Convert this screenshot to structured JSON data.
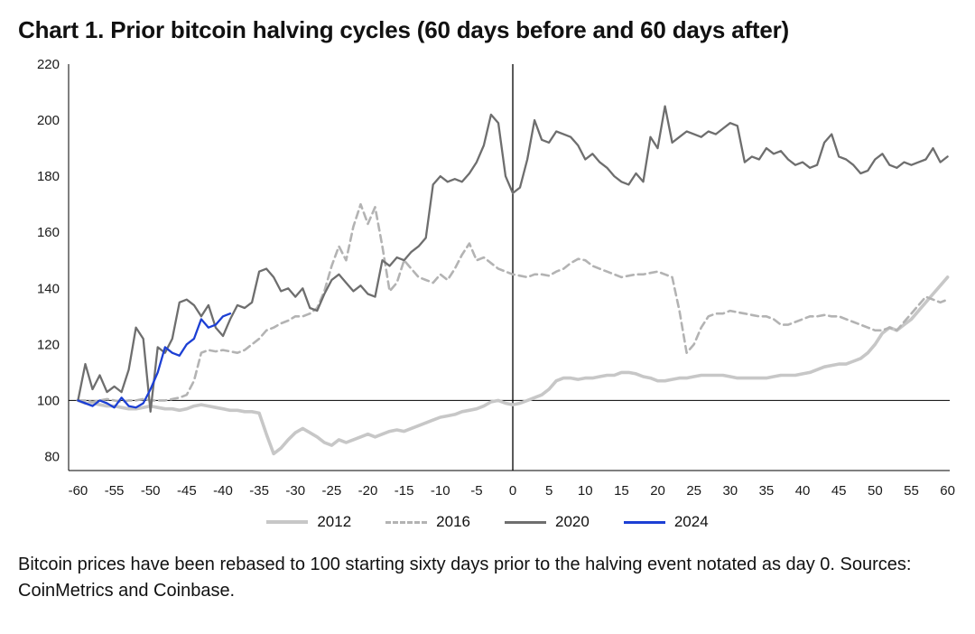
{
  "title": "Chart 1. Prior bitcoin halving cycles (60 days before and 60 days after)",
  "caption": "Bitcoin prices have been rebased to 100 starting sixty days prior to the halving event notated as day 0. Sources: CoinMetrics and Coinbase.",
  "chart_data": {
    "type": "line",
    "title": "Chart 1. Prior bitcoin halving cycles (60 days before and 60 days after)",
    "xlabel": "",
    "ylabel": "",
    "xlim": [
      -60,
      60
    ],
    "ylim": [
      75,
      220
    ],
    "x_ticks": [
      -60,
      -55,
      -50,
      -45,
      -40,
      -35,
      -30,
      -25,
      -20,
      -15,
      -10,
      -5,
      0,
      5,
      10,
      15,
      20,
      25,
      30,
      35,
      40,
      45,
      50,
      55,
      60
    ],
    "y_ticks": [
      80,
      100,
      120,
      140,
      160,
      180,
      200,
      220
    ],
    "grid": false,
    "legend_position": "bottom",
    "reference_lines": {
      "vertical_day": 0,
      "horizontal_level": 100
    },
    "series": [
      {
        "name": "2012",
        "color": "#c7c7c7",
        "dashed": false,
        "width": 3.6,
        "x_start": -60,
        "values": [
          100,
          99,
          99,
          98.5,
          98,
          98,
          97.5,
          97,
          97,
          97.5,
          98,
          97.5,
          97,
          97,
          96.5,
          97,
          98,
          98.5,
          98,
          97.5,
          97,
          96.5,
          96.5,
          96,
          96,
          95.5,
          88,
          81,
          83,
          86,
          88.5,
          90,
          88.5,
          87,
          85,
          84,
          86,
          85,
          86,
          87,
          88,
          87,
          88,
          89,
          89.5,
          89,
          90,
          91,
          92,
          93,
          94,
          94.5,
          95,
          96,
          96.5,
          97,
          98,
          99.5,
          100,
          99,
          98.5,
          99,
          100,
          101,
          102,
          104,
          107,
          108,
          108,
          107.5,
          108,
          108,
          108.5,
          109,
          109,
          110,
          110,
          109.5,
          108.5,
          108,
          107,
          107,
          107.5,
          108,
          108,
          108.5,
          109,
          109,
          109,
          109,
          108.5,
          108,
          108,
          108,
          108,
          108,
          108.5,
          109,
          109,
          109,
          109.5,
          110,
          111,
          112,
          112.5,
          113,
          113,
          114,
          115,
          117,
          120,
          124,
          126,
          125,
          127,
          129,
          132,
          135,
          138,
          141,
          144
        ]
      },
      {
        "name": "2016",
        "color": "#b3b3b3",
        "dashed": true,
        "width": 2.6,
        "x_start": -60,
        "values": [
          100,
          100,
          99.5,
          100,
          100.5,
          100,
          99.5,
          100,
          100,
          100.5,
          100,
          100,
          100,
          100.5,
          101,
          102,
          107,
          117,
          118,
          117.5,
          118,
          117.5,
          117,
          118,
          120,
          122,
          125,
          126,
          127.5,
          128.5,
          130,
          130,
          131,
          133,
          139,
          148,
          155,
          150,
          162,
          170,
          163,
          169,
          155,
          139,
          142,
          150,
          147,
          144,
          143,
          142,
          145,
          143,
          147,
          152,
          156,
          150,
          151,
          149,
          147,
          146,
          145,
          144.5,
          144,
          145,
          145,
          144.5,
          146,
          147,
          149,
          150.5,
          150,
          148,
          147,
          146,
          145,
          144,
          144.5,
          145,
          145,
          145.5,
          146,
          145,
          144,
          132,
          117,
          120,
          126,
          130,
          131,
          131,
          132,
          131.5,
          131,
          130.5,
          130,
          130,
          129,
          127,
          127,
          128,
          129,
          130,
          130,
          130.5,
          130,
          130,
          129,
          128,
          127,
          126,
          125,
          125,
          126,
          125,
          128,
          131,
          134,
          137,
          136,
          135,
          136
        ]
      },
      {
        "name": "2020",
        "color": "#6e6e6e",
        "dashed": false,
        "width": 2.3,
        "x_start": -60,
        "values": [
          100,
          113,
          104,
          109,
          103,
          105,
          103,
          111,
          126,
          122,
          96,
          119,
          117,
          122,
          135,
          136,
          134,
          130,
          134,
          126,
          123,
          129,
          134,
          133,
          135,
          146,
          147,
          144,
          139,
          140,
          137,
          140,
          133,
          132,
          138,
          143,
          145,
          142,
          139,
          141,
          138,
          137,
          150,
          148,
          151,
          150,
          153,
          155,
          158,
          177,
          180,
          178,
          179,
          178,
          181,
          185,
          191,
          202,
          199,
          180,
          174,
          176,
          186,
          200,
          193,
          192,
          196,
          195,
          194,
          191,
          186,
          188,
          185,
          183,
          180,
          178,
          177,
          181,
          178,
          194,
          190,
          205,
          192,
          194,
          196,
          195,
          194,
          196,
          195,
          197,
          199,
          198,
          185,
          187,
          186,
          190,
          188,
          189,
          186,
          184,
          185,
          183,
          184,
          192,
          195,
          187,
          186,
          184,
          181,
          182,
          186,
          188,
          184,
          183,
          185,
          184,
          185,
          186,
          190,
          185,
          187
        ]
      },
      {
        "name": "2024",
        "color": "#1c3fd4",
        "dashed": false,
        "width": 2.3,
        "x_start": -60,
        "values": [
          100,
          99,
          98,
          100,
          99,
          97.5,
          101,
          98,
          97.5,
          99,
          104,
          110,
          119,
          117,
          116,
          120,
          122,
          129,
          126,
          127,
          130,
          131
        ]
      }
    ]
  }
}
